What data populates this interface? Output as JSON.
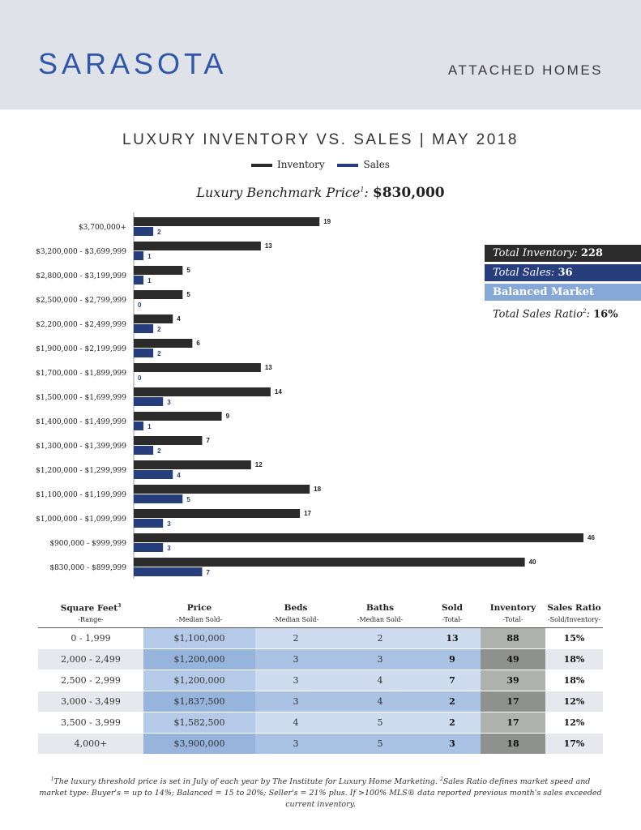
{
  "header": {
    "city": "SARASOTA",
    "category": "ATTACHED HOMES",
    "chart_title": "LUXURY INVENTORY VS. SALES | MAY 2018"
  },
  "legend": {
    "inventory": "Inventory",
    "sales": "Sales"
  },
  "benchmark": {
    "label": "Luxury Benchmark Price",
    "sup": "1",
    "colon": ":",
    "value": "$830,000"
  },
  "summary": {
    "total_inventory_label": "Total Inventory:",
    "total_inventory_value": "228",
    "total_sales_label": "Total Sales:",
    "total_sales_value": "36",
    "market": "Balanced Market",
    "ratio_label": "Total Sales Ratio",
    "ratio_sup": "2",
    "ratio_colon": ":",
    "ratio_value": "16%"
  },
  "colors": {
    "inventory": "#2b2b2b",
    "sales": "#263e7c",
    "header_bg": "#dfe2e9",
    "city": "#2f56a7",
    "balanced": "#86a8d6"
  },
  "chart_data": {
    "type": "bar",
    "orientation": "horizontal",
    "title": "LUXURY INVENTORY VS. SALES | MAY 2018",
    "categories": [
      "$3,700,000+",
      "$3,200,000 - $3,699,999",
      "$2,800,000 - $3,199,999",
      "$2,500,000 - $2,799,999",
      "$2,200,000 - $2,499,999",
      "$1,900,000 - $2,199,999",
      "$1,700,000 - $1,899,999",
      "$1,500,000 - $1,699,999",
      "$1,400,000 - $1,499,999",
      "$1,300,000 - $1,399,999",
      "$1,200,000 - $1,299,999",
      "$1,100,000 - $1,199,999",
      "$1,000,000 - $1,099,999",
      "$900,000 - $999,999",
      "$830,000 - $899,999"
    ],
    "series": [
      {
        "name": "Inventory",
        "values": [
          19,
          13,
          5,
          5,
          4,
          6,
          13,
          14,
          9,
          7,
          12,
          18,
          17,
          46,
          40
        ]
      },
      {
        "name": "Sales",
        "values": [
          2,
          1,
          1,
          0,
          2,
          2,
          0,
          3,
          1,
          2,
          4,
          5,
          3,
          3,
          7
        ]
      }
    ],
    "xlim": [
      0,
      46
    ],
    "grid": false,
    "legend": "top-center"
  },
  "table": {
    "headers": [
      {
        "title": "Square Feet",
        "sup": "3",
        "sub": "-Range-"
      },
      {
        "title": "Price",
        "sup": "",
        "sub": "-Median Sold-"
      },
      {
        "title": "Beds",
        "sup": "",
        "sub": "-Median Sold-"
      },
      {
        "title": "Baths",
        "sup": "",
        "sub": "-Median Sold-"
      },
      {
        "title": "Sold",
        "sup": "",
        "sub": "-Total-"
      },
      {
        "title": "Inventory",
        "sup": "",
        "sub": "-Total-"
      },
      {
        "title": "Sales Ratio",
        "sup": "",
        "sub": "-Sold/Inventory-"
      }
    ],
    "rows": [
      [
        "0 - 1,999",
        "$1,100,000",
        "2",
        "2",
        "13",
        "88",
        "15%"
      ],
      [
        "2,000 - 2,499",
        "$1,200,000",
        "3",
        "3",
        "9",
        "49",
        "18%"
      ],
      [
        "2,500 - 2,999",
        "$1,200,000",
        "3",
        "4",
        "7",
        "39",
        "18%"
      ],
      [
        "3,000 - 3,499",
        "$1,837,500",
        "3",
        "4",
        "2",
        "17",
        "12%"
      ],
      [
        "3,500 - 3,999",
        "$1,582,500",
        "4",
        "5",
        "2",
        "17",
        "12%"
      ],
      [
        "4,000+",
        "$3,900,000",
        "3",
        "5",
        "3",
        "18",
        "17%"
      ]
    ]
  },
  "footnote": {
    "sup1": "1",
    "text1": "The luxury threshold price is set in July of each year by The Institute for Luxury Home Marketing.",
    "sup2": "2",
    "text2": "Sales Ratio defines market speed and market type: Buyer's = up to 14%; Balanced = 15 to 20%; Seller's = 21% plus. If >100% MLS® data reported previous month's sales exceeded current inventory."
  }
}
